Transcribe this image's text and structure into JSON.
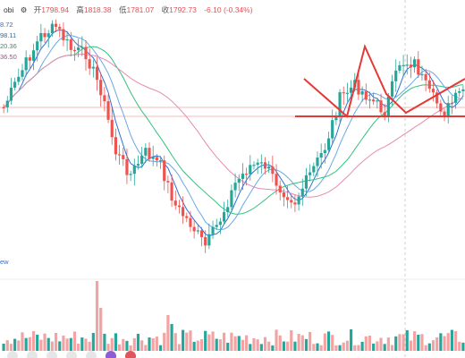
{
  "header": {
    "source_suffix": "obi",
    "ohlc": [
      {
        "key": "开",
        "value": "1798.94"
      },
      {
        "key": "高",
        "value": "1818.38"
      },
      {
        "key": "低",
        "value": "1781.07"
      },
      {
        "key": "收",
        "value": "1792.73"
      }
    ],
    "change": "-6.10 (-0.34%)",
    "gear_icon": "gear-icon"
  },
  "ma_values": [
    "8.72",
    "98.11",
    "20.36",
    "36.50"
  ],
  "volume_label_suffix": "ew",
  "colors": {
    "up": "#26a69a",
    "down": "#ef5350",
    "ma_blue": "#2f6fd6",
    "ma_lightblue": "#6ba8e6",
    "ma_green": "#34c27f",
    "ma_pink": "#e58bb2",
    "drawing_red": "#e53935",
    "ref_line": "#f2a7a7"
  },
  "chart_data": {
    "type": "candlestick",
    "title": "",
    "xlabel": "",
    "ylabel": "",
    "candles_count": 124,
    "last_candle": {
      "open": 1798.94,
      "high": 1818.38,
      "low": 1781.07,
      "close": 1792.73,
      "change": -6.1,
      "change_pct": -0.34
    },
    "moving_averages": [
      "MA-short",
      "MA-medium",
      "MA-long",
      "MA-longest"
    ],
    "volume_panel": true,
    "drawings": [
      "zigzag head-and-shoulders pattern",
      "horizontal neckline"
    ],
    "grid": false
  }
}
